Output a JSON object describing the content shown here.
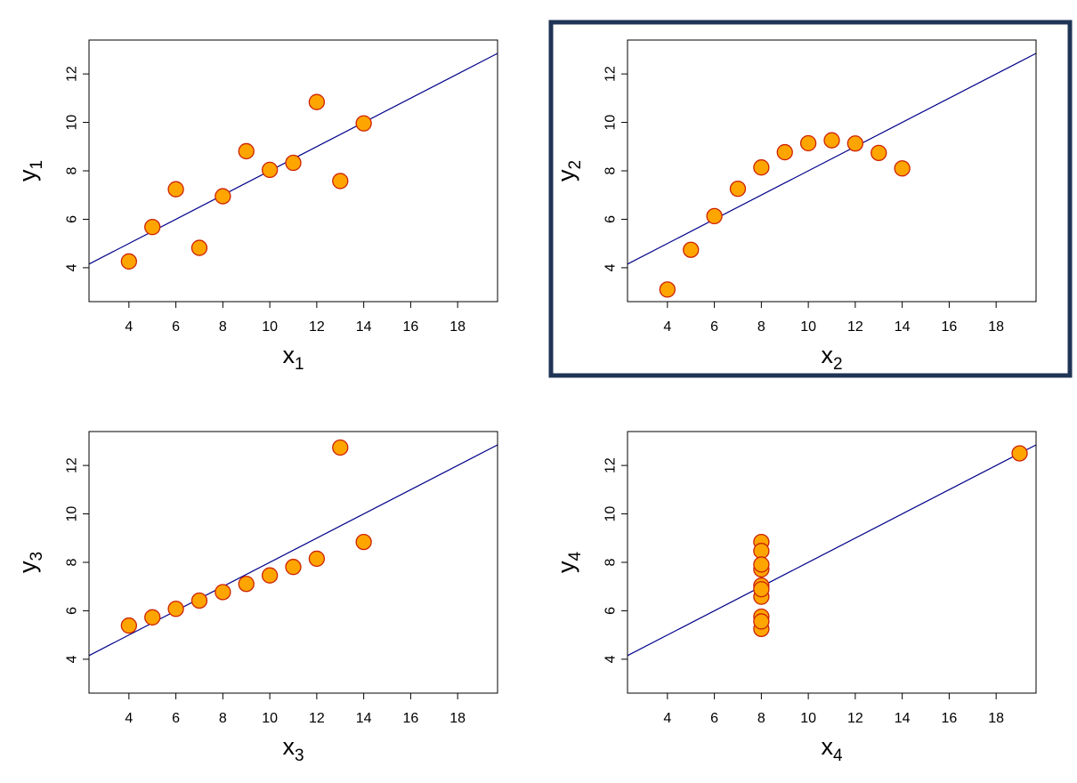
{
  "colors": {
    "marker_fill": "#FFA500",
    "marker_stroke": "#CC2200",
    "fit_line": "#00008B",
    "highlight_border": "#1F3456"
  },
  "chart_data": [
    {
      "type": "scatter",
      "xlabel": "x",
      "xlabel_sub": "1",
      "ylabel": "y",
      "ylabel_sub": "1",
      "xlim": [
        2.3,
        19.7
      ],
      "ylim": [
        2.6,
        13.4
      ],
      "xticks": [
        "4",
        "6",
        "8",
        "10",
        "12",
        "14",
        "16",
        "18"
      ],
      "yticks": [
        "4",
        "6",
        "8",
        "10",
        "12"
      ],
      "grid": false,
      "highlighted": false,
      "fit_line": {
        "intercept": 3.0,
        "slope": 0.5
      },
      "points": [
        {
          "x": 10,
          "y": 8.04
        },
        {
          "x": 8,
          "y": 6.95
        },
        {
          "x": 13,
          "y": 7.58
        },
        {
          "x": 9,
          "y": 8.81
        },
        {
          "x": 11,
          "y": 8.33
        },
        {
          "x": 14,
          "y": 9.96
        },
        {
          "x": 6,
          "y": 7.24
        },
        {
          "x": 4,
          "y": 4.26
        },
        {
          "x": 12,
          "y": 10.84
        },
        {
          "x": 7,
          "y": 4.82
        },
        {
          "x": 5,
          "y": 5.68
        }
      ]
    },
    {
      "type": "scatter",
      "xlabel": "x",
      "xlabel_sub": "2",
      "ylabel": "y",
      "ylabel_sub": "2",
      "xlim": [
        2.3,
        19.7
      ],
      "ylim": [
        2.6,
        13.4
      ],
      "xticks": [
        "4",
        "6",
        "8",
        "10",
        "12",
        "14",
        "16",
        "18"
      ],
      "yticks": [
        "4",
        "6",
        "8",
        "10",
        "12"
      ],
      "grid": false,
      "highlighted": true,
      "fit_line": {
        "intercept": 3.0,
        "slope": 0.5
      },
      "points": [
        {
          "x": 10,
          "y": 9.14
        },
        {
          "x": 8,
          "y": 8.14
        },
        {
          "x": 13,
          "y": 8.74
        },
        {
          "x": 9,
          "y": 8.77
        },
        {
          "x": 11,
          "y": 9.26
        },
        {
          "x": 14,
          "y": 8.1
        },
        {
          "x": 6,
          "y": 6.13
        },
        {
          "x": 4,
          "y": 3.1
        },
        {
          "x": 12,
          "y": 9.13
        },
        {
          "x": 7,
          "y": 7.26
        },
        {
          "x": 5,
          "y": 4.74
        }
      ]
    },
    {
      "type": "scatter",
      "xlabel": "x",
      "xlabel_sub": "3",
      "ylabel": "y",
      "ylabel_sub": "3",
      "xlim": [
        2.3,
        19.7
      ],
      "ylim": [
        2.6,
        13.4
      ],
      "xticks": [
        "4",
        "6",
        "8",
        "10",
        "12",
        "14",
        "16",
        "18"
      ],
      "yticks": [
        "4",
        "6",
        "8",
        "10",
        "12"
      ],
      "grid": false,
      "highlighted": false,
      "fit_line": {
        "intercept": 3.0,
        "slope": 0.5
      },
      "points": [
        {
          "x": 10,
          "y": 7.46
        },
        {
          "x": 8,
          "y": 6.77
        },
        {
          "x": 13,
          "y": 12.74
        },
        {
          "x": 9,
          "y": 7.11
        },
        {
          "x": 11,
          "y": 7.81
        },
        {
          "x": 14,
          "y": 8.84
        },
        {
          "x": 6,
          "y": 6.08
        },
        {
          "x": 4,
          "y": 5.39
        },
        {
          "x": 12,
          "y": 8.15
        },
        {
          "x": 7,
          "y": 6.42
        },
        {
          "x": 5,
          "y": 5.73
        }
      ]
    },
    {
      "type": "scatter",
      "xlabel": "x",
      "xlabel_sub": "4",
      "ylabel": "y",
      "ylabel_sub": "4",
      "xlim": [
        2.3,
        19.7
      ],
      "ylim": [
        2.6,
        13.4
      ],
      "xticks": [
        "4",
        "6",
        "8",
        "10",
        "12",
        "14",
        "16",
        "18"
      ],
      "yticks": [
        "4",
        "6",
        "8",
        "10",
        "12"
      ],
      "grid": false,
      "highlighted": false,
      "fit_line": {
        "intercept": 3.0,
        "slope": 0.5
      },
      "points": [
        {
          "x": 8,
          "y": 6.58
        },
        {
          "x": 8,
          "y": 5.76
        },
        {
          "x": 8,
          "y": 7.71
        },
        {
          "x": 8,
          "y": 8.84
        },
        {
          "x": 8,
          "y": 8.47
        },
        {
          "x": 8,
          "y": 7.04
        },
        {
          "x": 8,
          "y": 5.25
        },
        {
          "x": 19,
          "y": 12.5
        },
        {
          "x": 8,
          "y": 5.56
        },
        {
          "x": 8,
          "y": 7.91
        },
        {
          "x": 8,
          "y": 6.89
        }
      ]
    }
  ]
}
